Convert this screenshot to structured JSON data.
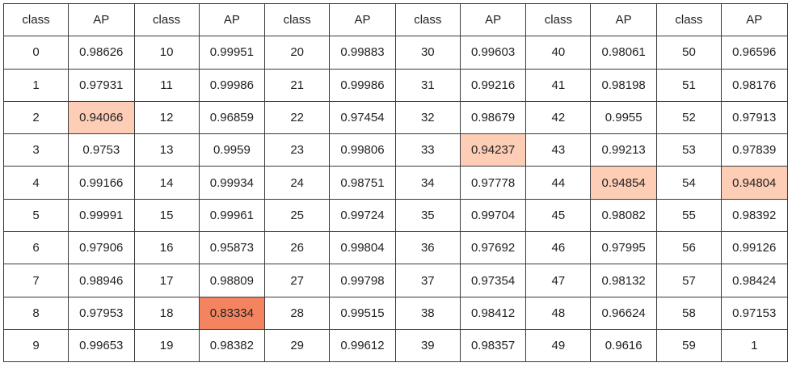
{
  "table": {
    "headers": [
      "class",
      "AP",
      "class",
      "AP",
      "class",
      "AP",
      "class",
      "AP",
      "class",
      "AP",
      "class",
      "AP"
    ],
    "rows": [
      [
        "0",
        "0.98626",
        "10",
        "0.99951",
        "20",
        "0.99883",
        "30",
        "0.99603",
        "40",
        "0.98061",
        "50",
        "0.96596"
      ],
      [
        "1",
        "0.97931",
        "11",
        "0.99986",
        "21",
        "0.99986",
        "31",
        "0.99216",
        "41",
        "0.98198",
        "51",
        "0.98176"
      ],
      [
        "2",
        "0.94066",
        "12",
        "0.96859",
        "22",
        "0.97454",
        "32",
        "0.98679",
        "42",
        "0.9955",
        "52",
        "0.97913"
      ],
      [
        "3",
        "0.9753",
        "13",
        "0.9959",
        "23",
        "0.99806",
        "33",
        "0.94237",
        "43",
        "0.99213",
        "53",
        "0.97839"
      ],
      [
        "4",
        "0.99166",
        "14",
        "0.99934",
        "24",
        "0.98751",
        "34",
        "0.97778",
        "44",
        "0.94854",
        "54",
        "0.94804"
      ],
      [
        "5",
        "0.99991",
        "15",
        "0.99961",
        "25",
        "0.99724",
        "35",
        "0.99704",
        "45",
        "0.98082",
        "55",
        "0.98392"
      ],
      [
        "6",
        "0.97906",
        "16",
        "0.95873",
        "26",
        "0.99804",
        "36",
        "0.97692",
        "46",
        "0.97995",
        "56",
        "0.99126"
      ],
      [
        "7",
        "0.98946",
        "17",
        "0.98809",
        "27",
        "0.99798",
        "37",
        "0.97354",
        "47",
        "0.98132",
        "57",
        "0.98424"
      ],
      [
        "8",
        "0.97953",
        "18",
        "0.83334",
        "28",
        "0.99515",
        "38",
        "0.98412",
        "48",
        "0.96624",
        "58",
        "0.97153"
      ],
      [
        "9",
        "0.99653",
        "19",
        "0.98382",
        "29",
        "0.99612",
        "39",
        "0.98357",
        "49",
        "0.9616",
        "59",
        "1"
      ]
    ]
  },
  "highlight_colors": {
    "light": "#fdcdb6",
    "strong": "#f4845f"
  }
}
